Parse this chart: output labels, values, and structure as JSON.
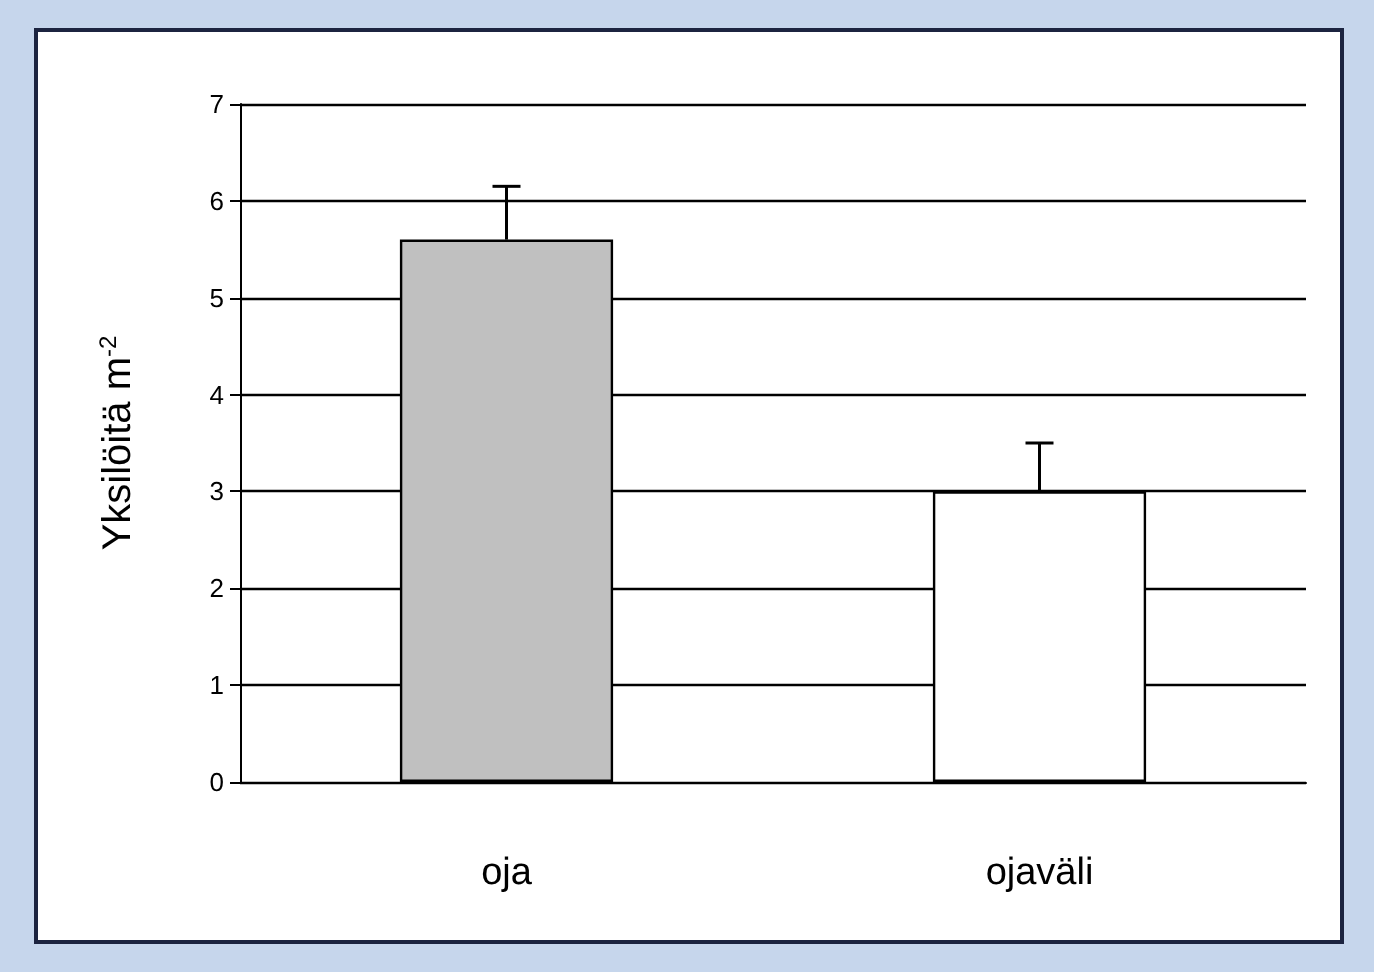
{
  "chart_data": {
    "type": "bar",
    "ylabel": "Yksilöitä m$^{-2}$",
    "categories": [
      "oja",
      "ojaväli"
    ],
    "values": [
      5.6,
      3.0
    ],
    "colors": [
      "#c0c0c0",
      "#ffffff"
    ],
    "errors": [
      [
        5.6,
        6.15
      ],
      [
        3.0,
        3.5
      ]
    ],
    "ylim": [
      0,
      7
    ],
    "yticks": [
      0,
      1,
      2,
      3,
      4,
      5,
      6,
      7
    ],
    "grid": "y"
  }
}
